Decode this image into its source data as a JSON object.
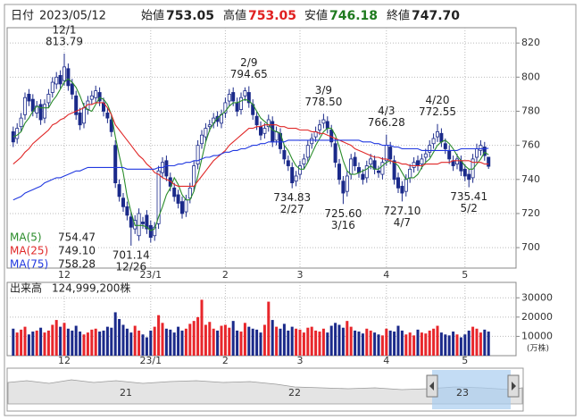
{
  "header": {
    "date_label": "日付",
    "date": "2023/05/12",
    "fields": [
      {
        "label": "始値",
        "value": "753.05"
      },
      {
        "label": "高値",
        "value": "753.05"
      },
      {
        "label": "安値",
        "value": "746.18"
      },
      {
        "label": "終値",
        "value": "747.70"
      }
    ]
  },
  "chart_data": {
    "type": "candlestick",
    "categories": [
      null,
      null,
      null,
      null,
      null,
      null,
      null,
      null,
      null,
      null,
      null,
      null,
      null,
      "12",
      null,
      null,
      null,
      null,
      null,
      null,
      null,
      null,
      null,
      null,
      null,
      null,
      null,
      null,
      null,
      null,
      null,
      null,
      null,
      null,
      null,
      "23/1",
      null,
      null,
      null,
      null,
      null,
      null,
      null,
      null,
      null,
      null,
      null,
      null,
      null,
      null,
      null,
      null,
      null,
      null,
      "2",
      null,
      null,
      null,
      null,
      null,
      null,
      null,
      null,
      null,
      null,
      null,
      null,
      null,
      null,
      null,
      null,
      null,
      null,
      "3",
      null,
      null,
      null,
      null,
      null,
      null,
      null,
      null,
      null,
      null,
      null,
      null,
      null,
      null,
      null,
      null,
      null,
      null,
      null,
      null,
      null,
      "4",
      null,
      null,
      null,
      null,
      null,
      null,
      null,
      null,
      null,
      null,
      null,
      null,
      null,
      null,
      null,
      null,
      null,
      null,
      null,
      "5",
      null,
      null,
      null,
      null,
      null,
      null
    ],
    "open": [
      768,
      764,
      771,
      778,
      790,
      787,
      779,
      784,
      776,
      785,
      791,
      796,
      801,
      798,
      805,
      796,
      789,
      779,
      773,
      781,
      787,
      788,
      791,
      785,
      779,
      775,
      760,
      737,
      729,
      724,
      718,
      711,
      707,
      715,
      719,
      713,
      707,
      714,
      744,
      751,
      741,
      735,
      731,
      727,
      721,
      729,
      736,
      749,
      761,
      765,
      771,
      773,
      777,
      773,
      779,
      786,
      791,
      785,
      781,
      789,
      791,
      784,
      777,
      771,
      767,
      771,
      774,
      763,
      767,
      757,
      751,
      747,
      739,
      743,
      749,
      753,
      761,
      765,
      769,
      773,
      774,
      769,
      761,
      749,
      739,
      733,
      743,
      753,
      747,
      743,
      741,
      749,
      751,
      745,
      743,
      751,
      759,
      751,
      741,
      736,
      733,
      741,
      747,
      751,
      749,
      753,
      756,
      761,
      765,
      767,
      761,
      757,
      751,
      749,
      751,
      746,
      743,
      741,
      753,
      757,
      759,
      753.05
    ],
    "high": [
      771,
      773,
      779,
      791,
      793,
      790,
      786,
      787,
      787,
      793,
      800,
      803,
      804,
      813.79,
      808,
      799,
      792,
      782,
      785,
      789,
      792,
      795,
      794,
      788,
      782,
      778,
      763,
      740,
      732,
      727,
      721,
      719,
      723,
      718,
      722,
      716,
      715,
      748,
      753,
      754,
      744,
      738,
      734,
      730,
      731,
      738,
      751,
      763,
      769,
      773,
      775,
      779,
      780,
      781,
      788,
      793,
      794,
      788,
      791,
      794,
      794.65,
      787,
      780,
      774,
      773,
      778,
      777,
      771,
      770,
      760,
      754,
      750,
      745,
      751,
      755,
      763,
      767,
      771,
      775,
      778.5,
      777,
      772,
      764,
      752,
      742,
      745,
      755,
      756,
      750,
      746,
      751,
      755,
      754,
      748,
      753,
      766.28,
      762,
      754,
      744,
      739,
      743,
      749,
      753,
      754,
      755,
      758,
      763,
      767,
      772.55,
      770,
      764,
      760,
      754,
      755,
      754,
      749,
      746,
      755,
      761,
      763,
      762,
      753.05
    ],
    "low": [
      759,
      761,
      768,
      775,
      783,
      777,
      776,
      772,
      773,
      782,
      788,
      793,
      793,
      795,
      792,
      787,
      775,
      769,
      770,
      778,
      784,
      785,
      783,
      777,
      773,
      765,
      735,
      727,
      721,
      716,
      701.14,
      708,
      704,
      711,
      708,
      703,
      704,
      711,
      741,
      739,
      733,
      727,
      723,
      717,
      718,
      726,
      733,
      746,
      758,
      762,
      768,
      770,
      771,
      770,
      776,
      783,
      783,
      777,
      778,
      786,
      782,
      775,
      769,
      763,
      764,
      768,
      759,
      760,
      755,
      749,
      745,
      734.83,
      736,
      740,
      746,
      750,
      758,
      762,
      766,
      770,
      767,
      759,
      747,
      737,
      725.6,
      730,
      740,
      745,
      741,
      737,
      738,
      746,
      743,
      741,
      740,
      748,
      749,
      737,
      732,
      727.1,
      730,
      738,
      744,
      745,
      746,
      750,
      753,
      758,
      762,
      759,
      755,
      749,
      745,
      746,
      742,
      739,
      735.41,
      738,
      750,
      754,
      751,
      746.18
    ],
    "close": [
      762,
      770,
      776,
      788,
      786,
      780,
      783,
      775,
      784,
      790,
      797,
      800,
      796,
      806,
      795,
      790,
      778,
      772,
      782,
      786,
      789,
      792,
      786,
      780,
      776,
      768,
      738,
      730,
      724,
      719,
      712,
      716,
      720,
      714,
      711,
      706,
      712,
      745,
      750,
      742,
      736,
      730,
      726,
      720,
      728,
      735,
      748,
      760,
      766,
      770,
      772,
      776,
      774,
      778,
      785,
      790,
      786,
      780,
      788,
      792,
      785,
      778,
      772,
      766,
      770,
      775,
      762,
      768,
      758,
      752,
      748,
      738,
      742,
      748,
      752,
      760,
      764,
      768,
      772,
      775,
      770,
      762,
      750,
      740,
      732,
      742,
      752,
      748,
      744,
      740,
      748,
      752,
      746,
      744,
      750,
      760,
      752,
      740,
      735,
      732,
      740,
      746,
      750,
      748,
      752,
      755,
      760,
      764,
      768,
      762,
      758,
      752,
      748,
      752,
      745,
      742,
      740,
      752,
      758,
      760,
      754,
      747.7
    ],
    "candle_color": "#1b2a8a",
    "up_fill": "#ffffff",
    "ylim": [
      688,
      829
    ],
    "yticks": [
      700,
      720,
      740,
      760,
      780,
      800,
      820
    ],
    "grid": true,
    "series": [
      {
        "name": "MA(5)",
        "color": "#2a8c2a",
        "legend_value": "754.47",
        "values": [
          765,
          766,
          768,
          773,
          776,
          780,
          783,
          782,
          782,
          782,
          786,
          789,
          793,
          797,
          799,
          797,
          794,
          789,
          783,
          781,
          780,
          784,
          788,
          787,
          784,
          778,
          765,
          754,
          744,
          730,
          721,
          713,
          713,
          713,
          712,
          710,
          711,
          718,
          724,
          731,
          735,
          741,
          737,
          731,
          728,
          728,
          733,
          742,
          752,
          762,
          769,
          773,
          776,
          778,
          780,
          783,
          785,
          785,
          786,
          787,
          786,
          784,
          780,
          776,
          774,
          772,
          769,
          768,
          767,
          760,
          757,
          752,
          748,
          746,
          746,
          750,
          755,
          760,
          764,
          768,
          770,
          770,
          766,
          759,
          751,
          745,
          743,
          743,
          744,
          745,
          746,
          748,
          746,
          746,
          748,
          750,
          751,
          750,
          748,
          744,
          740,
          741,
          741,
          743,
          747,
          750,
          752,
          756,
          760,
          762,
          763,
          761,
          758,
          754,
          751,
          748,
          746,
          746,
          749,
          752,
          756,
          754.47
        ]
      },
      {
        "name": "MA(25)",
        "color": "#e02828",
        "legend_value": "749.10",
        "values": [
          749,
          751,
          753,
          756,
          758,
          761,
          763,
          765,
          767,
          769,
          772,
          773,
          775,
          776,
          778,
          779,
          780,
          781,
          782,
          784,
          784,
          785,
          785,
          785,
          782,
          778,
          772,
          769,
          766,
          763,
          760,
          757,
          754,
          752,
          749,
          747,
          744,
          743,
          741,
          740,
          739,
          737,
          736,
          736,
          736,
          736,
          736,
          739,
          742,
          745,
          748,
          751,
          753,
          755,
          757,
          760,
          762,
          764,
          766,
          768,
          770,
          770,
          771,
          771,
          772,
          772,
          772,
          772,
          771,
          771,
          770,
          770,
          770,
          769,
          769,
          769,
          768,
          768,
          767,
          767,
          766,
          765,
          764,
          763,
          762,
          761,
          760,
          758,
          757,
          756,
          755,
          754,
          753,
          753,
          752,
          752,
          751,
          750,
          750,
          749,
          749,
          748,
          748,
          748,
          748,
          749,
          749,
          749,
          749,
          750,
          750,
          750,
          751,
          751,
          751,
          751,
          751,
          750,
          750,
          750,
          749,
          749.1
        ]
      },
      {
        "name": "MA(75)",
        "color": "#2038e0",
        "legend_value": "758.28",
        "values": [
          728,
          729,
          730,
          732,
          733,
          734,
          735,
          736,
          738,
          739,
          740,
          741,
          741,
          742,
          743,
          744,
          745,
          745,
          746,
          747,
          747,
          747,
          747,
          747,
          747,
          747,
          747,
          747,
          747,
          746,
          746,
          746,
          746,
          746,
          746,
          746,
          746,
          747,
          747,
          748,
          748,
          748,
          749,
          749,
          750,
          750,
          751,
          751,
          752,
          753,
          753,
          754,
          754,
          755,
          756,
          756,
          757,
          757,
          758,
          758,
          759,
          760,
          760,
          761,
          761,
          762,
          762,
          762,
          762,
          762,
          763,
          763,
          763,
          763,
          763,
          763,
          763,
          763,
          763,
          763,
          763,
          763,
          763,
          763,
          763,
          763,
          763,
          763,
          763,
          762,
          762,
          762,
          761,
          761,
          760,
          760,
          760,
          759,
          759,
          758,
          758,
          758,
          758,
          758,
          757,
          757,
          757,
          757,
          757,
          757,
          757,
          757,
          757,
          757,
          758,
          758,
          758,
          758,
          758,
          758,
          758,
          758.28
        ]
      }
    ],
    "annotations": [
      {
        "date": "12/1",
        "price": 813.79
      },
      {
        "date": "12/26",
        "price": 701.14
      },
      {
        "date": "2/9",
        "price": 794.65
      },
      {
        "date": "2/27",
        "price": 734.83
      },
      {
        "date": "3/9",
        "price": {
          "value": 778.5,
          "label": "778.50"
        }
      },
      {
        "date": "3/16",
        "price": {
          "value": 725.6,
          "label": "725.60"
        }
      },
      {
        "date": "4/3",
        "price": 766.28
      },
      {
        "date": "4/7",
        "price": {
          "value": 727.1,
          "label": "727.10"
        }
      },
      {
        "date": "4/20",
        "price": 772.55
      },
      {
        "date": "5/2",
        "price": 735.41
      }
    ],
    "volume": {
      "label": "出来高",
      "last_label": "124,999,200株",
      "unit": "(万株)",
      "up_color": "#e8262b",
      "down_color": "#1b2a8a",
      "ylim": [
        0,
        38000
      ],
      "yticks": [
        10000,
        20000,
        30000
      ],
      "values": [
        14000,
        12000,
        13500,
        15000,
        11000,
        12500,
        13000,
        14500,
        12000,
        13000,
        16000,
        18500,
        15000,
        17000,
        14000,
        13000,
        15500,
        12500,
        11000,
        12000,
        13500,
        14000,
        12500,
        13000,
        15000,
        14500,
        22500,
        19000,
        16000,
        14000,
        12000,
        15500,
        13000,
        11000,
        9500,
        13000,
        15000,
        21000,
        17000,
        14000,
        13500,
        12000,
        15000,
        13000,
        14000,
        16500,
        18000,
        20000,
        29000,
        16000,
        17500,
        14000,
        13000,
        15500,
        16000,
        14500,
        18000,
        13000,
        12500,
        17000,
        15000,
        14000,
        13500,
        12000,
        16000,
        28000,
        18500,
        15000,
        14000,
        16500,
        13000,
        15000,
        14000,
        13500,
        12000,
        14500,
        15000,
        13000,
        12500,
        14000,
        12000,
        15500,
        17000,
        16000,
        14500,
        18000,
        15000,
        13000,
        12500,
        11500,
        14000,
        13000,
        12000,
        11000,
        10500,
        14000,
        13000,
        12500,
        15500,
        13000,
        11000,
        12000,
        10500,
        13500,
        12000,
        11500,
        13000,
        14000,
        15500,
        12000,
        11000,
        10500,
        12500,
        11000,
        9500,
        11000,
        13000,
        15000,
        14000,
        12000,
        13500,
        12499.92
      ]
    }
  },
  "navigator": {
    "labels": [
      "21",
      "22",
      "23"
    ]
  }
}
